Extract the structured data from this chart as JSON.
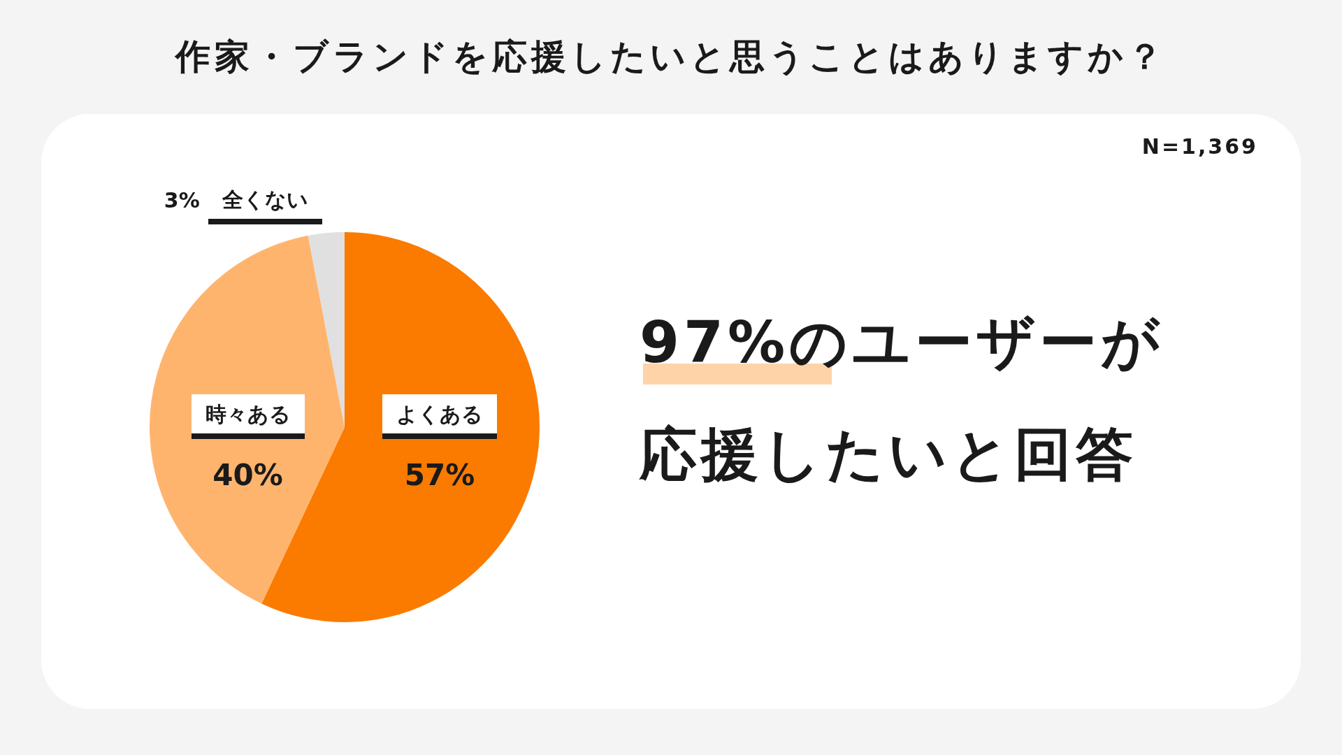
{
  "chart_data": {
    "type": "pie",
    "title": "作家・ブランドを応援したいと思うことはありますか？",
    "categories": [
      "よくある",
      "時々ある",
      "全くない"
    ],
    "values": [
      57,
      40,
      3
    ],
    "value_labels": [
      "57%",
      "40%",
      "3%"
    ],
    "colors": [
      "#fa7b00",
      "#ffb46e",
      "#e0e0e0"
    ],
    "legend": false,
    "annotations": [
      "N=1,369",
      "97%のユーザーが",
      "応援したいと回答"
    ]
  }
}
